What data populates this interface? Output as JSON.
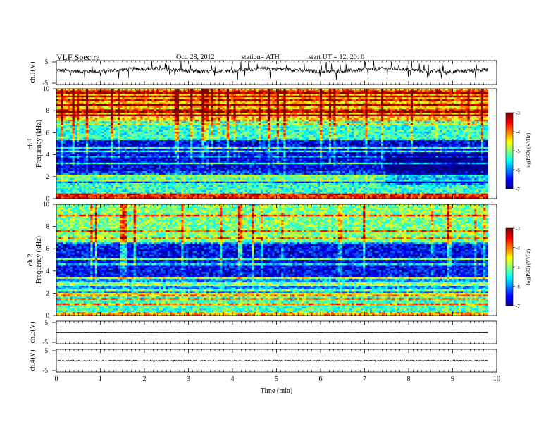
{
  "header": {
    "title": "VLF  Spectra",
    "date": "Oct. 28, 2012",
    "station": "station= ATH",
    "start": "start  UT  =    12: 20: 0"
  },
  "chart_data": [
    {
      "type": "line",
      "ylabel": "ch.1(V)",
      "ylim": [
        -5,
        5
      ],
      "yticks": [
        "5",
        "-5"
      ],
      "xlim": [
        0,
        10
      ],
      "description_visible": "noisy waveform around ~ +1 V with frequent spikes",
      "baseline": 1.0,
      "noise_amplitude": 0.8
    },
    {
      "type": "heatmap",
      "ylabel": "ch.1\nFrequency  (kHz)",
      "ylim": [
        0,
        10
      ],
      "yticks": [
        "0",
        "2",
        "4",
        "6",
        "8",
        "10"
      ],
      "xlim": [
        0,
        10
      ],
      "x_data_end": 9.8,
      "colorbar": {
        "label": "log(PSD) (V²/Hz)",
        "ticks": [
          "-3",
          "-4",
          "-5",
          "-6",
          "-7"
        ],
        "range": [
          -7,
          -3
        ]
      },
      "bands": [
        {
          "from": 0.0,
          "to": 0.4,
          "level": -3.6
        },
        {
          "from": 0.4,
          "to": 1.4,
          "level": -5.3
        },
        {
          "from": 1.4,
          "to": 2.5,
          "level": -6.2
        },
        {
          "from": 2.5,
          "to": 5.5,
          "level": -6.6
        },
        {
          "from": 5.5,
          "to": 7.0,
          "level": -5.3
        },
        {
          "from": 7.0,
          "to": 10.0,
          "level": -4.3
        }
      ]
    },
    {
      "type": "heatmap",
      "ylabel": "ch.2\nFrequency  (kHz)",
      "ylim": [
        0,
        10
      ],
      "yticks": [
        "0",
        "2",
        "4",
        "6",
        "8",
        "10"
      ],
      "xlim": [
        0,
        10
      ],
      "x_data_end": 9.8,
      "colorbar": {
        "label": "log(PSD) (V²/Hz)",
        "ticks": [
          "-3",
          "-4",
          "-5",
          "-6",
          "-7"
        ],
        "range": [
          -7,
          -3
        ]
      },
      "bands": [
        {
          "from": 0.0,
          "to": 0.3,
          "level": -4.2
        },
        {
          "from": 0.3,
          "to": 2.0,
          "level": -5.2
        },
        {
          "from": 2.0,
          "to": 3.5,
          "level": -5.9
        },
        {
          "from": 3.5,
          "to": 6.5,
          "level": -6.5
        },
        {
          "from": 6.5,
          "to": 10.0,
          "level": -5.0
        }
      ]
    },
    {
      "type": "line",
      "ylabel": "ch.3(V)",
      "ylim": [
        -5,
        5
      ],
      "yticks": [
        "5",
        "-5"
      ],
      "xlim": [
        0,
        10
      ],
      "baseline": 0.0,
      "noise_amplitude": 0.05
    },
    {
      "type": "line",
      "ylabel": "ch.4(V)",
      "ylim": [
        -5,
        5
      ],
      "yticks": [
        "5",
        "-5"
      ],
      "xlim": [
        0,
        10
      ],
      "baseline": 0.0,
      "noise_amplitude": 0.25
    }
  ],
  "xaxis": {
    "label": "Time  (min)",
    "ticks": [
      "0",
      "1",
      "2",
      "3",
      "4",
      "5",
      "6",
      "7",
      "8",
      "9",
      "10"
    ]
  }
}
